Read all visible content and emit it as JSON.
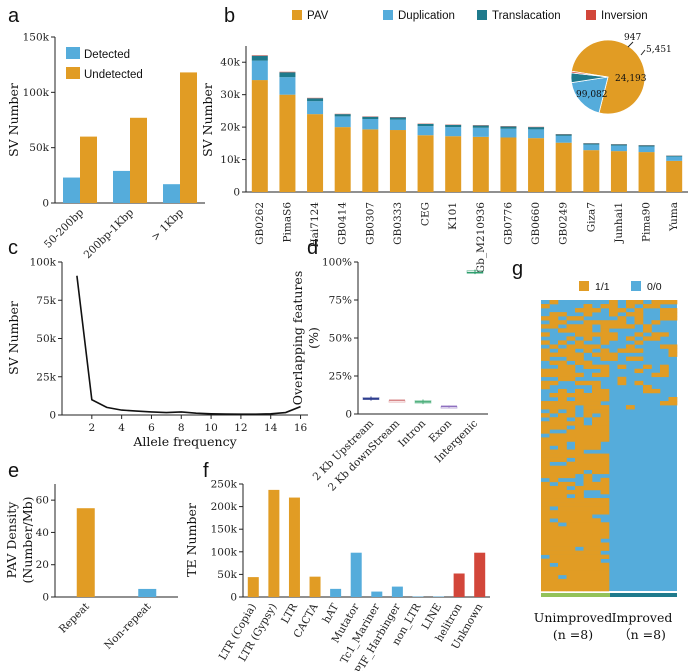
{
  "colors": {
    "orange": "#E19C24",
    "blue": "#55ACDB",
    "teal": "#1F7A8C",
    "red": "#D2463A",
    "gray": "#666666",
    "green": "#93C25A"
  },
  "chart_data": [
    {
      "panel": "a",
      "type": "bar",
      "ylabel": "SV Number",
      "yticks": [
        0,
        50000,
        100000,
        150000
      ],
      "ytick_labels": [
        "0",
        "50k",
        "100k",
        "150k"
      ],
      "ylim": [
        0,
        150000
      ],
      "categories": [
        "50-200bp",
        "200bp-1Kbp",
        "> 1Kbp"
      ],
      "series": [
        {
          "name": "Detected",
          "values": [
            23000,
            29000,
            17000
          ]
        },
        {
          "name": "Undetected",
          "values": [
            60000,
            77000,
            118000
          ]
        }
      ],
      "legend": "top-left"
    },
    {
      "panel": "b",
      "type": "bar",
      "ylabel": "SV Number",
      "ylim": [
        0,
        45000
      ],
      "yticks": [
        0,
        10000,
        20000,
        30000,
        40000
      ],
      "ytick_labels": [
        "0",
        "10k",
        "20k",
        "30k",
        "40k"
      ],
      "categories": [
        "GB0262",
        "PimaS6",
        "Hai7124",
        "GB0414",
        "GB0307",
        "GB0333",
        "CEG",
        "K101",
        "Gb_M210936",
        "GB0776",
        "GB0660",
        "GB0249",
        "Giza7",
        "Junhai1",
        "Pima90",
        "Yuma"
      ],
      "series": [
        {
          "name": "PAV",
          "values": [
            34500,
            30000,
            24000,
            20000,
            19300,
            19100,
            17500,
            17200,
            17000,
            16800,
            16600,
            15200,
            12900,
            12600,
            12300,
            9600
          ]
        },
        {
          "name": "Duplication",
          "values": [
            6000,
            5400,
            4000,
            3300,
            3200,
            3200,
            2800,
            2800,
            2800,
            2700,
            2700,
            2100,
            1700,
            1700,
            1700,
            1300
          ]
        },
        {
          "name": "Translacation",
          "values": [
            1500,
            1500,
            900,
            700,
            700,
            700,
            700,
            700,
            700,
            700,
            700,
            500,
            400,
            400,
            400,
            300
          ]
        },
        {
          "name": "Inversion",
          "values": [
            150,
            150,
            120,
            100,
            100,
            100,
            90,
            90,
            90,
            90,
            90,
            70,
            60,
            60,
            60,
            50
          ]
        }
      ],
      "legend": "top",
      "stacked": true
    },
    {
      "panel": "b-inset",
      "type": "pie",
      "slices": [
        {
          "name": "PAV",
          "value": 99082,
          "label": "99,082"
        },
        {
          "name": "Duplication",
          "value": 24193,
          "label": "24,193"
        },
        {
          "name": "Translacation",
          "value": 5451,
          "label": "5,451"
        },
        {
          "name": "Inversion",
          "value": 947,
          "label": "947"
        }
      ]
    },
    {
      "panel": "c",
      "type": "line",
      "xlabel": "Allele frequency",
      "ylabel": "SV Number",
      "xlim": [
        0,
        16.5
      ],
      "ylim": [
        0,
        100000
      ],
      "xticks": [
        2,
        4,
        6,
        8,
        10,
        12,
        14,
        16
      ],
      "yticks": [
        0,
        25000,
        50000,
        75000,
        100000
      ],
      "ytick_labels": [
        "0",
        "25k",
        "50k",
        "75k",
        "100k"
      ],
      "x": [
        1,
        2,
        3,
        4,
        5,
        6,
        7,
        8,
        9,
        10,
        11,
        12,
        13,
        14,
        15,
        16
      ],
      "y": [
        91000,
        10000,
        5000,
        3200,
        2600,
        2000,
        1600,
        2000,
        1200,
        800,
        600,
        500,
        500,
        800,
        1600,
        5500
      ]
    },
    {
      "panel": "d",
      "type": "box",
      "ylabel": "Overlapping features (%)",
      "ylim": [
        0,
        100
      ],
      "yticks": [
        0,
        25,
        50,
        75,
        100
      ],
      "ytick_labels": [
        "0",
        "25%",
        "50%",
        "75%",
        "100%"
      ],
      "categories": [
        "2 Kb Upstream",
        "2 Kb downStream",
        "Intron",
        "Exon",
        "Intergenic"
      ],
      "box_colors": [
        "#2F3E8F",
        "#D8888A",
        "#4DAF7C",
        "#8E6FBF",
        "#2E9F6E"
      ],
      "values": [
        10,
        9,
        8,
        5,
        93
      ],
      "lows": [
        8.8,
        8.7,
        6.5,
        4.2,
        92
      ],
      "highs": [
        11.5,
        9.4,
        9.5,
        5.5,
        95
      ]
    },
    {
      "panel": "e",
      "type": "bar",
      "ylabel": "PAV Density (Number/Mb)",
      "ylim": [
        0,
        70
      ],
      "yticks": [
        0,
        20,
        40,
        60
      ],
      "categories": [
        "Repeat",
        "Non-repeat"
      ],
      "values": [
        55,
        5
      ]
    },
    {
      "panel": "f",
      "type": "bar",
      "ylabel": "TE Number",
      "ylim": [
        0,
        250000
      ],
      "yticks": [
        0,
        50000,
        100000,
        150000,
        200000,
        250000
      ],
      "ytick_labels": [
        "0",
        "50k",
        "100k",
        "150k",
        "200k",
        "250k"
      ],
      "categories": [
        "LTR (Copia)",
        "LTR (Gypsy)",
        "LTR",
        "CACTA",
        "hAT",
        "Mutator",
        "Tc1_Mariner",
        "PIF_Harbinger",
        "non_LTR",
        "LINE",
        "helitron",
        "Unknown"
      ],
      "values": [
        44000,
        237000,
        220000,
        45000,
        18000,
        98000,
        12000,
        23000,
        1000,
        1000,
        52000,
        98000
      ],
      "bar_colors": [
        "#E19C24",
        "#E19C24",
        "#E19C24",
        "#E19C24",
        "#55ACDB",
        "#55ACDB",
        "#55ACDB",
        "#55ACDB",
        "#55ACDB",
        "#55ACDB",
        "#D2463A",
        "#D2463A"
      ]
    },
    {
      "panel": "g",
      "type": "heatmap",
      "legend": [
        "1/1",
        "0/0"
      ],
      "groups": [
        {
          "name": "Unimproved",
          "n_label": "(n =8)",
          "fraction_1_1": 0.55
        },
        {
          "name": "Improved",
          "n_label": "（n =8)",
          "fraction_1_1": 0.3
        }
      ]
    }
  ],
  "labels": {
    "a": "a",
    "b": "b",
    "c": "c",
    "d": "d",
    "e": "e",
    "f": "f",
    "g": "g"
  }
}
